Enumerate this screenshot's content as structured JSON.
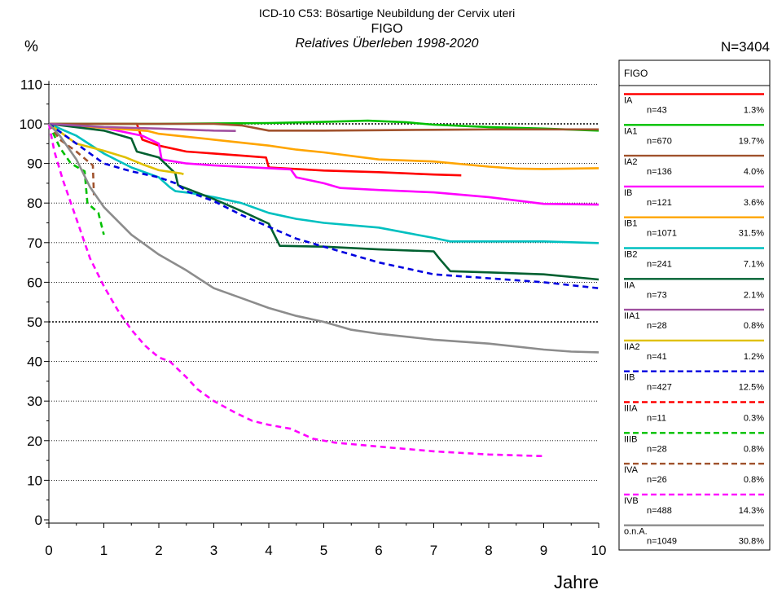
{
  "title_lines": [
    "ICD-10 C53: Bösartige Neubildung der Cervix uteri",
    "FIGO",
    "Relatives Überleben 1998-2020"
  ],
  "total_n": "N=3404",
  "chart_data": {
    "type": "line",
    "title": "ICD-10 C53: Bösartige Neubildung der Cervix uteri",
    "subtitle": "FIGO",
    "subtitle2": "Relatives Überleben 1998-2020",
    "xlabel": "Jahre",
    "ylabel": "%",
    "xlim": [
      0,
      10
    ],
    "ylim": [
      0,
      110
    ],
    "xticks": [
      0,
      1,
      2,
      3,
      4,
      5,
      6,
      7,
      8,
      9,
      10
    ],
    "yticks": [
      0,
      10,
      20,
      30,
      40,
      50,
      60,
      70,
      80,
      90,
      100,
      110
    ],
    "grid": "horizontal dotted",
    "legend_title": "FIGO",
    "legend_position": "right",
    "series": [
      {
        "name": "IA",
        "n": "n=43",
        "pct": "1.3%",
        "color": "#ff0000",
        "dash": false,
        "points": [
          [
            0,
            100
          ],
          [
            1.6,
            100
          ],
          [
            1.7,
            96
          ],
          [
            2,
            94.5
          ],
          [
            2.5,
            93
          ],
          [
            3,
            92.5
          ],
          [
            3.5,
            92
          ],
          [
            3.95,
            91.5
          ],
          [
            4,
            89
          ],
          [
            5,
            88.2
          ],
          [
            6,
            87.8
          ],
          [
            7,
            87.2
          ],
          [
            7.5,
            87
          ]
        ]
      },
      {
        "name": "IA1",
        "n": "n=670",
        "pct": "19.7%",
        "color": "#00c000",
        "dash": false,
        "points": [
          [
            0,
            100
          ],
          [
            2,
            100
          ],
          [
            4,
            100.2
          ],
          [
            5,
            100.5
          ],
          [
            5.8,
            100.8
          ],
          [
            6.5,
            100.4
          ],
          [
            7,
            99.8
          ],
          [
            8,
            99.2
          ],
          [
            9,
            98.8
          ],
          [
            10,
            98.3
          ]
        ]
      },
      {
        "name": "IA2",
        "n": "n=136",
        "pct": "4.0%",
        "color": "#a0522d",
        "dash": false,
        "points": [
          [
            0,
            100
          ],
          [
            1,
            100
          ],
          [
            2,
            100
          ],
          [
            3,
            100
          ],
          [
            3.5,
            99.6
          ],
          [
            4,
            98.3
          ],
          [
            5,
            98.3
          ],
          [
            6,
            98.4
          ],
          [
            7,
            98.5
          ],
          [
            8,
            98.6
          ],
          [
            9,
            98.6
          ],
          [
            10,
            98.6
          ]
        ]
      },
      {
        "name": "IB",
        "n": "n=121",
        "pct": "3.6%",
        "color": "#ff00ff",
        "dash": false,
        "points": [
          [
            0,
            100
          ],
          [
            1,
            99
          ],
          [
            1.7,
            97
          ],
          [
            2,
            95
          ],
          [
            2.05,
            91
          ],
          [
            2.5,
            90
          ],
          [
            3,
            89.5
          ],
          [
            4,
            88.8
          ],
          [
            4.4,
            88.5
          ],
          [
            4.5,
            86.5
          ],
          [
            5,
            85
          ],
          [
            5.3,
            83.8
          ],
          [
            6,
            83.3
          ],
          [
            7,
            82.7
          ],
          [
            8,
            81.5
          ],
          [
            9,
            79.8
          ],
          [
            10,
            79.6
          ]
        ]
      },
      {
        "name": "IB1",
        "n": "n=1071",
        "pct": "31.5%",
        "color": "#ffa500",
        "dash": false,
        "points": [
          [
            0,
            100
          ],
          [
            1,
            99
          ],
          [
            1.8,
            98.2
          ],
          [
            2,
            97.5
          ],
          [
            3,
            96
          ],
          [
            4,
            94.5
          ],
          [
            4.5,
            93.5
          ],
          [
            5,
            92.8
          ],
          [
            6,
            91
          ],
          [
            7,
            90.5
          ],
          [
            8,
            89.2
          ],
          [
            8.5,
            88.7
          ],
          [
            9,
            88.6
          ],
          [
            10,
            88.8
          ]
        ]
      },
      {
        "name": "IB2",
        "n": "n=241",
        "pct": "7.1%",
        "color": "#00c0c0",
        "dash": false,
        "points": [
          [
            0,
            100
          ],
          [
            0.5,
            97
          ],
          [
            1,
            92.5
          ],
          [
            1.5,
            89
          ],
          [
            2,
            86.5
          ],
          [
            2.2,
            84
          ],
          [
            2.3,
            83
          ],
          [
            2.6,
            82.5
          ],
          [
            3,
            81.5
          ],
          [
            3.5,
            80
          ],
          [
            4,
            77.5
          ],
          [
            4.5,
            76
          ],
          [
            5,
            75
          ],
          [
            6,
            73.8
          ],
          [
            6.5,
            72.5
          ],
          [
            7,
            71.2
          ],
          [
            7.3,
            70.3
          ],
          [
            8,
            70.3
          ],
          [
            9,
            70.3
          ],
          [
            10,
            69.9
          ]
        ]
      },
      {
        "name": "IIA",
        "n": "n=73",
        "pct": "2.1%",
        "color": "#006030",
        "dash": false,
        "points": [
          [
            0,
            100
          ],
          [
            1,
            98.3
          ],
          [
            1.5,
            96.3
          ],
          [
            1.6,
            93
          ],
          [
            2,
            91.5
          ],
          [
            2.3,
            87.5
          ],
          [
            2.35,
            84.5
          ],
          [
            3,
            81
          ],
          [
            3.5,
            78
          ],
          [
            4,
            74.8
          ],
          [
            4.2,
            69.2
          ],
          [
            5,
            69
          ],
          [
            6,
            68.3
          ],
          [
            7,
            67.8
          ],
          [
            7.1,
            66
          ],
          [
            7.3,
            62.8
          ],
          [
            8,
            62.5
          ],
          [
            9,
            62
          ],
          [
            10,
            60.7
          ]
        ]
      },
      {
        "name": "IIA1",
        "n": "n=28",
        "pct": "0.8%",
        "color": "#a050a0",
        "dash": false,
        "points": [
          [
            0,
            100
          ],
          [
            1,
            99.2
          ],
          [
            2,
            98.8
          ],
          [
            3,
            98.3
          ],
          [
            3.4,
            98.2
          ]
        ]
      },
      {
        "name": "IIA2",
        "n": "n=41",
        "pct": "1.2%",
        "color": "#e0c000",
        "dash": false,
        "points": [
          [
            0,
            100
          ],
          [
            0.2,
            98
          ],
          [
            0.5,
            95
          ],
          [
            1,
            93.2
          ],
          [
            1.4,
            91.5
          ],
          [
            1.7,
            89.8
          ],
          [
            2,
            88.3
          ],
          [
            2.4,
            87.5
          ],
          [
            2.45,
            87.3
          ]
        ]
      },
      {
        "name": "IIB",
        "n": "n=427",
        "pct": "12.5%",
        "color": "#0000e0",
        "dash": true,
        "points": [
          [
            0,
            100
          ],
          [
            0.5,
            95
          ],
          [
            1,
            90
          ],
          [
            1.5,
            88
          ],
          [
            2,
            86.5
          ],
          [
            2.3,
            85
          ],
          [
            2.5,
            83
          ],
          [
            3,
            80.5
          ],
          [
            3.5,
            77
          ],
          [
            4,
            74
          ],
          [
            4.5,
            71
          ],
          [
            5,
            69
          ],
          [
            5.5,
            67
          ],
          [
            6,
            65
          ],
          [
            6.5,
            63.5
          ],
          [
            7,
            62
          ],
          [
            8,
            61
          ],
          [
            9,
            60
          ],
          [
            10,
            58.5
          ]
        ]
      },
      {
        "name": "IIIA",
        "n": "n=11",
        "pct": "0.3%",
        "color": "#ff0000",
        "dash": true,
        "points": []
      },
      {
        "name": "IIIB",
        "n": "n=28",
        "pct": "0.8%",
        "color": "#00c000",
        "dash": true,
        "points": [
          [
            0,
            100
          ],
          [
            0.2,
            94
          ],
          [
            0.4,
            90
          ],
          [
            0.65,
            88
          ],
          [
            0.7,
            80
          ],
          [
            0.9,
            77.5
          ],
          [
            1,
            72
          ]
        ]
      },
      {
        "name": "IVA",
        "n": "n=26",
        "pct": "0.8%",
        "color": "#a0522d",
        "dash": true,
        "points": [
          [
            0,
            100
          ],
          [
            0.2,
            96
          ],
          [
            0.5,
            93
          ],
          [
            0.8,
            89.5
          ],
          [
            0.82,
            82
          ]
        ]
      },
      {
        "name": "IVB",
        "n": "n=488",
        "pct": "14.3%",
        "color": "#ff00ff",
        "dash": true,
        "points": [
          [
            0,
            100
          ],
          [
            0.1,
            93
          ],
          [
            0.25,
            86
          ],
          [
            0.5,
            76
          ],
          [
            0.75,
            66
          ],
          [
            1,
            59
          ],
          [
            1.25,
            53
          ],
          [
            1.5,
            48
          ],
          [
            1.75,
            44
          ],
          [
            2,
            41
          ],
          [
            2.2,
            40
          ],
          [
            2.5,
            36
          ],
          [
            2.7,
            33
          ],
          [
            3,
            30
          ],
          [
            3.4,
            27
          ],
          [
            3.7,
            25
          ],
          [
            4,
            24
          ],
          [
            4.4,
            23
          ],
          [
            4.8,
            20.5
          ],
          [
            5.2,
            19.5
          ],
          [
            6,
            18.5
          ],
          [
            7,
            17.3
          ],
          [
            8,
            16.5
          ],
          [
            9,
            16.1
          ]
        ]
      },
      {
        "name": "o.n.A.",
        "n": "n=1049",
        "pct": "30.8%",
        "color": "#8c8c8c",
        "dash": false,
        "points": [
          [
            0,
            100
          ],
          [
            0.2,
            97
          ],
          [
            0.5,
            91
          ],
          [
            0.75,
            84
          ],
          [
            1,
            79
          ],
          [
            1.5,
            72
          ],
          [
            2,
            67
          ],
          [
            2.5,
            63
          ],
          [
            3,
            58.5
          ],
          [
            3.5,
            56
          ],
          [
            4,
            53.5
          ],
          [
            4.5,
            51.5
          ],
          [
            5,
            50
          ],
          [
            5.5,
            48
          ],
          [
            6,
            47
          ],
          [
            7,
            45.5
          ],
          [
            8,
            44.5
          ],
          [
            9,
            43
          ],
          [
            9.5,
            42.5
          ],
          [
            10,
            42.3
          ]
        ]
      }
    ]
  }
}
